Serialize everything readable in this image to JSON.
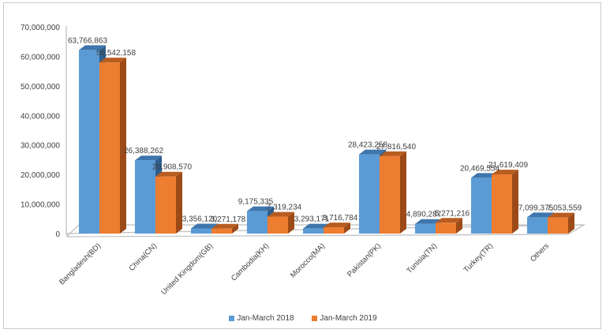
{
  "chart_data": {
    "type": "bar",
    "style": "3d-clustered-column",
    "title": "",
    "xlabel": "",
    "ylabel": "",
    "ylim": [
      0,
      70000000
    ],
    "yticks": [
      "0",
      "10,000,000",
      "20,000,000",
      "30,000,000",
      "40,000,000",
      "50,000,000",
      "60,000,000",
      "70,000,000"
    ],
    "ytick_values": [
      0,
      10000000,
      20000000,
      30000000,
      40000000,
      50000000,
      60000000,
      70000000
    ],
    "grid": false,
    "legend_position": "bottom",
    "categories": [
      "Bangladesh(BD)",
      "China(CN)",
      "United Kingdom(GB)",
      "Cambodia(KH)",
      "Morocco(MA)",
      "Pakistan(PK)",
      "Tunisia(TN)",
      "Turkey(TR)",
      "Others"
    ],
    "series": [
      {
        "name": "Jan-March 2018",
        "color": "#5b9bd5",
        "side_color": "#2e5f8f",
        "top_color": "#3e76ad",
        "values": [
          63766863,
          26388262,
          3356120,
          9175335,
          3293171,
          28423258,
          4890287,
          20469554,
          7099375
        ],
        "labels": [
          "63,766,863",
          "26,388,262",
          "3,356,120",
          "9,175,335",
          "3,293,171",
          "28,423,258",
          "4,890,287",
          "20,469,554",
          "7,099,375"
        ]
      },
      {
        "name": "Jan-March 2019",
        "color": "#ed7d31",
        "side_color": "#9c4a17",
        "top_color": "#b85c20",
        "values": [
          59542158,
          20908570,
          3271178,
          7319234,
          3716784,
          27816540,
          5271216,
          21619409,
          7053559
        ],
        "labels": [
          "59,542,158",
          "20,908,570",
          "3,271,178",
          "7,319,234",
          "3,716,784",
          "27,816,540",
          "5,271,216",
          "21,619,409",
          "7,053,559"
        ]
      }
    ]
  }
}
